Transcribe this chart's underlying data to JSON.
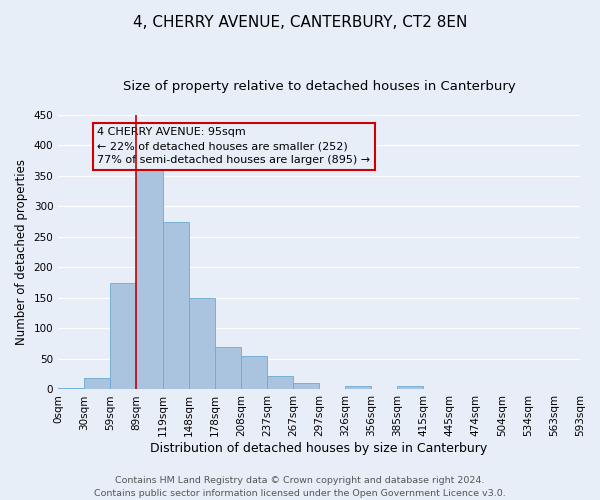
{
  "title": "4, CHERRY AVENUE, CANTERBURY, CT2 8EN",
  "subtitle": "Size of property relative to detached houses in Canterbury",
  "xlabel": "Distribution of detached houses by size in Canterbury",
  "ylabel": "Number of detached properties",
  "bin_labels": [
    "0sqm",
    "30sqm",
    "59sqm",
    "89sqm",
    "119sqm",
    "148sqm",
    "178sqm",
    "208sqm",
    "237sqm",
    "267sqm",
    "297sqm",
    "326sqm",
    "356sqm",
    "385sqm",
    "415sqm",
    "445sqm",
    "474sqm",
    "504sqm",
    "534sqm",
    "563sqm",
    "593sqm"
  ],
  "bar_values": [
    2,
    18,
    175,
    365,
    275,
    150,
    70,
    55,
    22,
    10,
    0,
    5,
    0,
    6,
    0,
    0,
    1,
    0,
    0,
    0
  ],
  "bar_color": "#aac4e0",
  "bar_edge_color": "#6aaad4",
  "property_line_bin": 3,
  "annotation_title": "4 CHERRY AVENUE: 95sqm",
  "annotation_line1": "← 22% of detached houses are smaller (252)",
  "annotation_line2": "77% of semi-detached houses are larger (895) →",
  "annotation_box_color": "#cc0000",
  "ylim": [
    0,
    450
  ],
  "yticks": [
    0,
    50,
    100,
    150,
    200,
    250,
    300,
    350,
    400,
    450
  ],
  "footer_line1": "Contains HM Land Registry data © Crown copyright and database right 2024.",
  "footer_line2": "Contains public sector information licensed under the Open Government Licence v3.0.",
  "background_color": "#e8eef8",
  "grid_color": "#ffffff",
  "title_fontsize": 11,
  "subtitle_fontsize": 9.5,
  "ylabel_fontsize": 8.5,
  "xlabel_fontsize": 9,
  "tick_fontsize": 7.5,
  "footer_fontsize": 6.8,
  "annotation_fontsize": 8
}
